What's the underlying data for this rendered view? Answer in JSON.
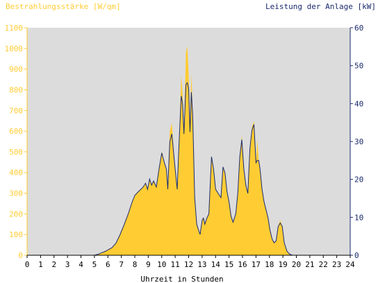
{
  "colors": {
    "background": "#ffffff",
    "plot_background": "#dcdcdc",
    "irradiance": "#ffcc33",
    "power": "#1a2a6c",
    "left_axis_text": "#ffcc33",
    "right_axis_text": "#1a2a6c",
    "bottom_axis_text": "#000000"
  },
  "chart_data": {
    "type": "area",
    "title": "",
    "xlabel": "Uhrzeit in Stunden",
    "ylabel_left": "Bestrahlungsstärke [W/qm]",
    "ylabel_right": "Leistung der Anlage [kW]",
    "xlim": [
      0,
      24
    ],
    "ylim_left": [
      0,
      1100
    ],
    "ylim_right": [
      0,
      60
    ],
    "x_ticks": [
      "0",
      "1",
      "2",
      "3",
      "4",
      "5",
      "6",
      "7",
      "8",
      "9",
      "10",
      "11",
      "12",
      "13",
      "14",
      "15",
      "16",
      "17",
      "18",
      "19",
      "20",
      "21",
      "22",
      "23",
      "24"
    ],
    "y_ticks_left": [
      "0",
      "100",
      "200",
      "300",
      "400",
      "500",
      "600",
      "700",
      "800",
      "900",
      "1000",
      "1100"
    ],
    "y_ticks_right": [
      "0",
      "10",
      "20",
      "30",
      "40",
      "50",
      "60"
    ],
    "grid": false,
    "legend": "none",
    "series": [
      {
        "axis": "left",
        "style": "filled-area",
        "x": [
          0,
          5.0,
          5.3,
          5.5,
          5.8,
          6.0,
          6.3,
          6.6,
          6.9,
          7.2,
          7.5,
          7.8,
          8.0,
          8.3,
          8.6,
          8.8,
          8.95,
          9.1,
          9.25,
          9.4,
          9.6,
          9.8,
          10.0,
          10.2,
          10.35,
          10.45,
          10.6,
          10.75,
          10.95,
          11.15,
          11.3,
          11.45,
          11.55,
          11.65,
          11.8,
          11.9,
          12.0,
          12.1,
          12.2,
          12.3,
          12.45,
          12.6,
          12.75,
          12.85,
          13.0,
          13.1,
          13.2,
          13.35,
          13.5,
          13.7,
          13.85,
          14.0,
          14.2,
          14.4,
          14.55,
          14.7,
          14.85,
          15.0,
          15.15,
          15.3,
          15.5,
          15.65,
          15.8,
          15.95,
          16.1,
          16.25,
          16.4,
          16.55,
          16.7,
          16.85,
          17.0,
          17.1,
          17.2,
          17.3,
          17.45,
          17.6,
          17.75,
          17.9,
          18.05,
          18.2,
          18.35,
          18.5,
          18.65,
          18.8,
          18.95,
          19.1,
          19.3,
          19.5,
          19.7,
          19.9,
          24
        ],
        "values": [
          0,
          0,
          5,
          12,
          20,
          28,
          38,
          60,
          100,
          150,
          200,
          260,
          290,
          310,
          330,
          350,
          320,
          370,
          340,
          360,
          330,
          420,
          500,
          450,
          420,
          320,
          600,
          640,
          450,
          320,
          560,
          870,
          780,
          600,
          980,
          1010,
          880,
          620,
          880,
          700,
          280,
          150,
          120,
          100,
          170,
          180,
          150,
          180,
          200,
          480,
          420,
          320,
          300,
          280,
          430,
          400,
          310,
          260,
          190,
          160,
          200,
          300,
          480,
          580,
          420,
          340,
          300,
          520,
          620,
          650,
          450,
          560,
          460,
          420,
          320,
          260,
          220,
          180,
          120,
          80,
          60,
          70,
          140,
          170,
          140,
          60,
          20,
          5,
          0,
          0,
          0
        ]
      },
      {
        "axis": "right",
        "style": "line",
        "x": [
          0,
          5.0,
          5.3,
          5.5,
          5.8,
          6.0,
          6.3,
          6.6,
          6.9,
          7.2,
          7.5,
          7.8,
          8.0,
          8.3,
          8.6,
          8.8,
          8.95,
          9.1,
          9.25,
          9.4,
          9.6,
          9.8,
          10.0,
          10.2,
          10.35,
          10.45,
          10.6,
          10.75,
          10.95,
          11.15,
          11.3,
          11.45,
          11.55,
          11.65,
          11.8,
          11.9,
          12.0,
          12.1,
          12.2,
          12.3,
          12.45,
          12.6,
          12.75,
          12.85,
          13.0,
          13.1,
          13.2,
          13.35,
          13.5,
          13.7,
          13.85,
          14.0,
          14.2,
          14.4,
          14.55,
          14.7,
          14.85,
          15.0,
          15.15,
          15.3,
          15.5,
          15.65,
          15.8,
          15.95,
          16.1,
          16.25,
          16.4,
          16.55,
          16.7,
          16.85,
          17.0,
          17.1,
          17.2,
          17.3,
          17.45,
          17.6,
          17.75,
          17.9,
          18.05,
          18.2,
          18.35,
          18.5,
          18.65,
          18.8,
          18.95,
          19.1,
          19.3,
          19.5,
          19.7,
          19.9,
          24
        ],
        "values": [
          0,
          0,
          0.3,
          0.6,
          1.0,
          1.4,
          2.0,
          3.2,
          5.4,
          8.0,
          10.8,
          14.0,
          15.8,
          16.9,
          17.9,
          19.0,
          17.4,
          20.1,
          18.5,
          19.6,
          18.0,
          22.8,
          27.0,
          24.4,
          22.7,
          17.4,
          30.0,
          32.0,
          24.4,
          17.4,
          30.4,
          42.0,
          40.0,
          32.0,
          45.0,
          45.5,
          44.0,
          32.5,
          43.0,
          37.0,
          15.2,
          8.2,
          6.5,
          5.5,
          9.2,
          9.8,
          8.2,
          9.8,
          10.9,
          26.0,
          22.8,
          17.4,
          16.3,
          15.2,
          23.3,
          21.7,
          16.8,
          14.1,
          10.3,
          8.7,
          10.9,
          16.3,
          26.0,
          30.5,
          22.8,
          18.5,
          16.3,
          28.2,
          33.0,
          34.5,
          24.4,
          25.0,
          25.0,
          22.8,
          17.4,
          14.1,
          12.0,
          9.8,
          6.5,
          4.3,
          3.3,
          3.8,
          7.6,
          8.5,
          7.6,
          3.3,
          1.1,
          0.3,
          0,
          0,
          0
        ]
      }
    ]
  }
}
